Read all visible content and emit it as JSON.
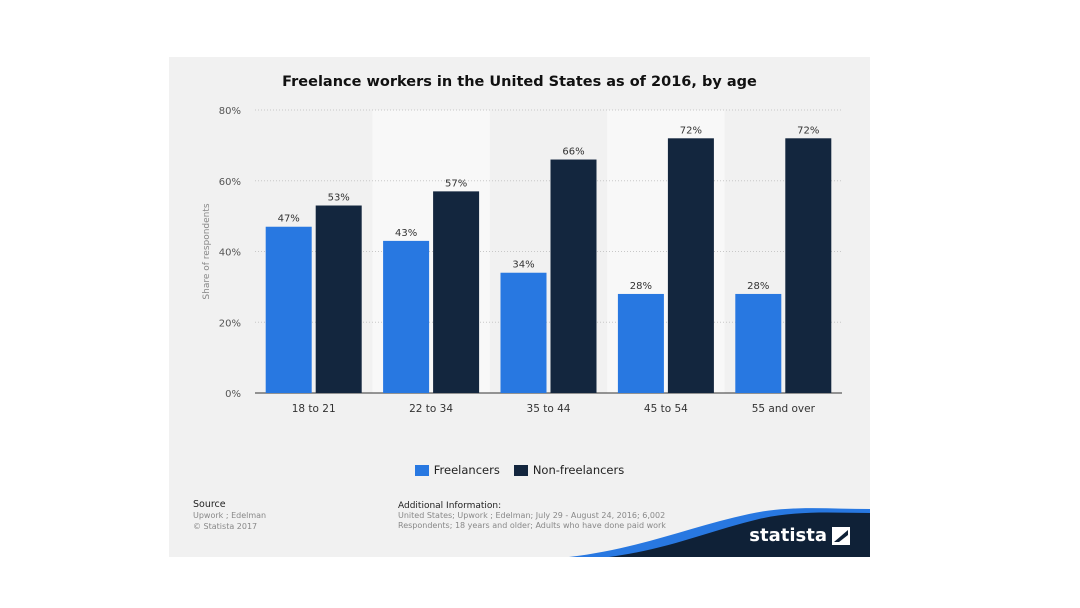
{
  "chart_data": {
    "type": "bar",
    "title": "Freelance workers in the United States as of 2016, by age",
    "ylabel": "Share of respondents",
    "ylim": [
      0,
      80
    ],
    "yticks": [
      "0%",
      "20%",
      "40%",
      "60%",
      "80%"
    ],
    "grid": true,
    "legend_position": "bottom",
    "categories": [
      "18 to 21",
      "22 to 34",
      "35 to 44",
      "45 to 54",
      "55 and over"
    ],
    "series": [
      {
        "name": "Freelancers",
        "values": [
          47,
          43,
          34,
          28,
          28
        ],
        "labels": [
          "47%",
          "43%",
          "34%",
          "28%",
          "28%"
        ],
        "color": "#2878e1"
      },
      {
        "name": "Non-freelancers",
        "values": [
          53,
          57,
          66,
          72,
          72
        ],
        "labels": [
          "53%",
          "57%",
          "66%",
          "72%",
          "72%"
        ],
        "color": "#13263e"
      }
    ]
  },
  "source": {
    "heading": "Source",
    "line1": "Upwork ; Edelman",
    "line2": "© Statista 2017"
  },
  "additional_info": {
    "heading": "Additional Information:",
    "text": "United States; Upwork ; Edelman; July 29 - August 24, 2016; 6,002 Respondents; 18 years and older; Adults who have done paid work"
  },
  "brand": {
    "name": "statista",
    "icon": "statista-logo-icon",
    "wave_color": "#0f2137",
    "accent_color": "#2878e1"
  }
}
